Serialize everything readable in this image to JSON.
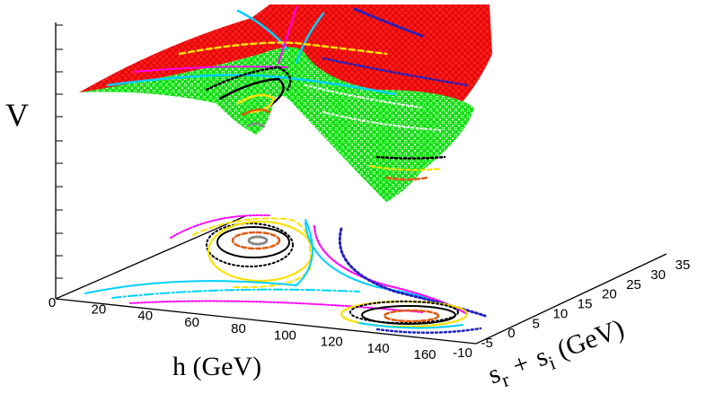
{
  "chart_data": {
    "type": "surface3d-with-contours",
    "title": "",
    "zlabel": "V",
    "xlabel": "h (GeV)",
    "ylabel_parts": {
      "s": "s",
      "r": "r",
      "plus": "+",
      "i": "i",
      "unit": "(GeV)"
    },
    "x_ticks": [
      "0",
      "20",
      "40",
      "60",
      "80",
      "100",
      "120",
      "140",
      "160"
    ],
    "y_ticks": [
      "-10",
      "-5",
      "0",
      "5",
      "10",
      "15",
      "20",
      "25",
      "30",
      "35"
    ],
    "xlim": [
      0,
      160
    ],
    "ylim": [
      -10,
      35
    ],
    "minima": [
      {
        "h": 38,
        "s": 18,
        "label": ""
      },
      {
        "h": 130,
        "s": -5,
        "label": ""
      }
    ],
    "surface_colors": {
      "upper": "#ff0000",
      "lower": "#00ee00"
    },
    "contour_levels": [
      {
        "color": "#808080",
        "style": "dotted"
      },
      {
        "color": "#e05a10",
        "style": "dashed"
      },
      {
        "color": "#000000",
        "style": "solid"
      },
      {
        "color": "#000000",
        "style": "dotted"
      },
      {
        "color": "#ffe000",
        "style": "solid"
      },
      {
        "color": "#ffe000",
        "style": "dashed"
      },
      {
        "color": "#ff00ff",
        "style": "dotted"
      },
      {
        "color": "#00d0ff",
        "style": "solid"
      },
      {
        "color": "#00d0ff",
        "style": "dashdot"
      },
      {
        "color": "#2020c0",
        "style": "dotted"
      }
    ]
  }
}
